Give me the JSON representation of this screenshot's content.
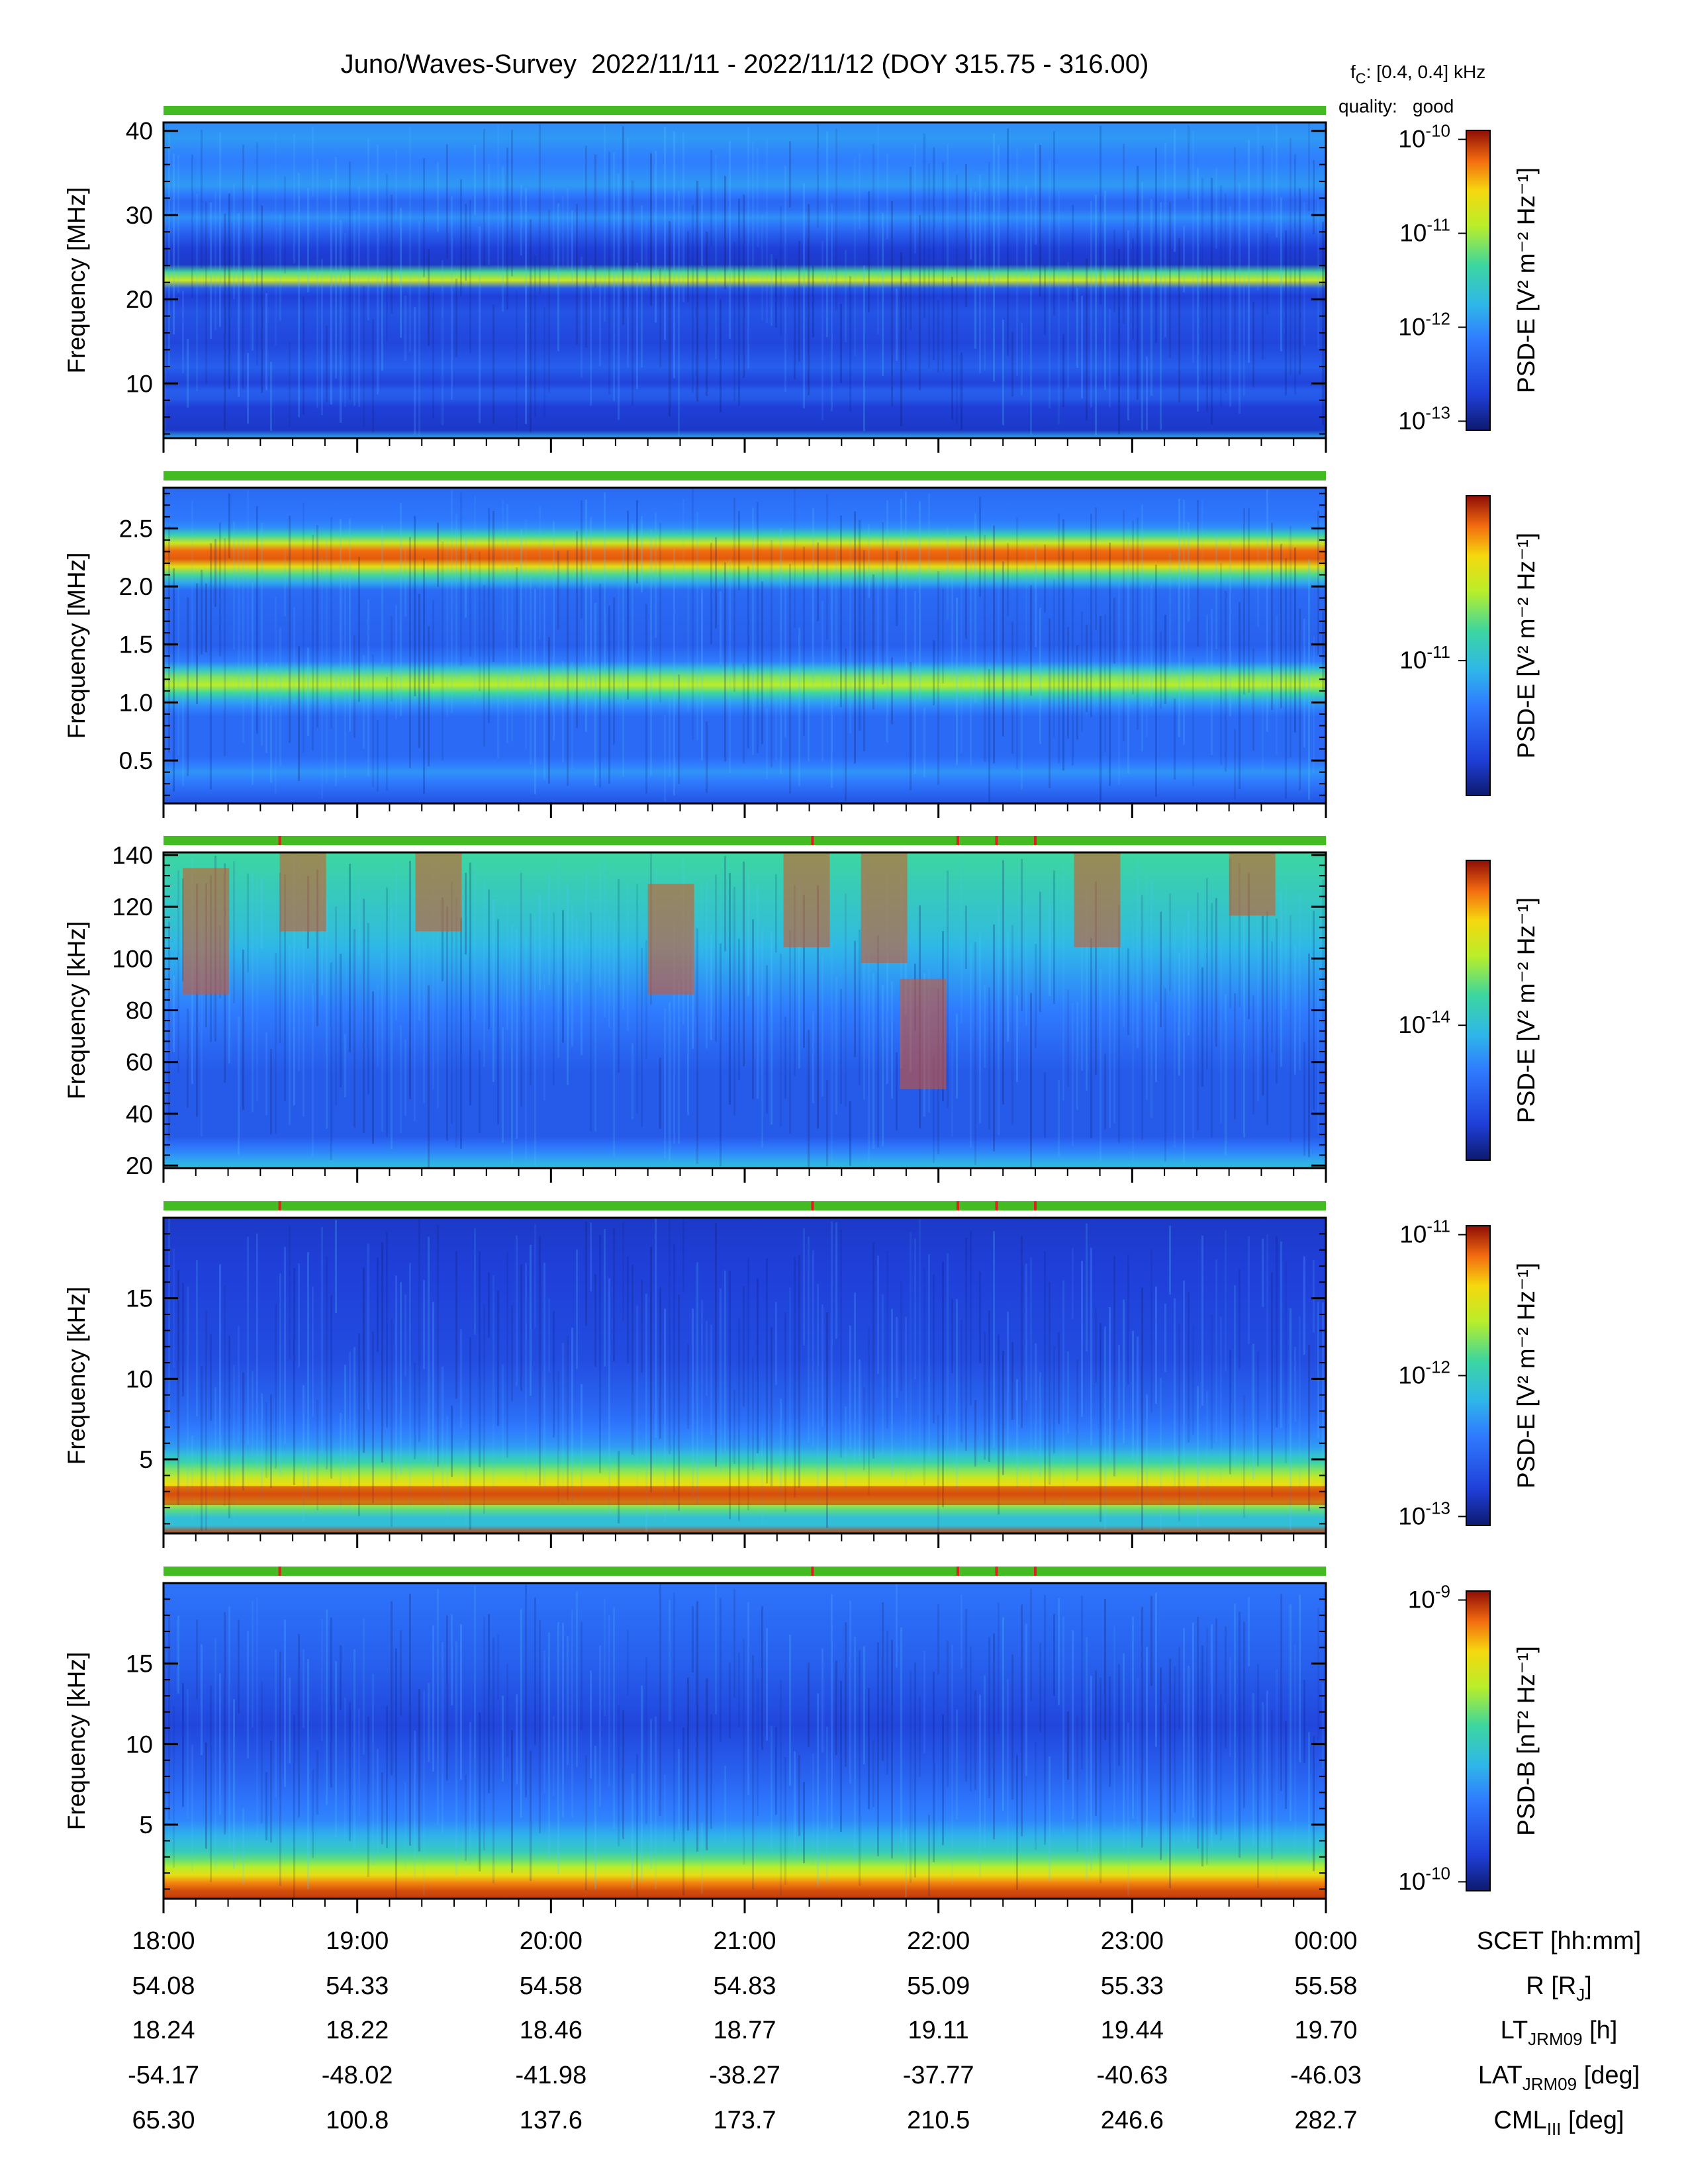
{
  "header": {
    "title": "Juno/Waves-Survey  2022/11/11 - 2022/11/12 (DOY 315.75 - 316.00)",
    "fc_prefix": "f",
    "fc_sub": "C",
    "fc_value": ": [0.4, 0.4] kHz",
    "quality_label": "quality:",
    "quality_value": "good",
    "quality_color": "#44bb22"
  },
  "chart_data": {
    "type": "heatmap",
    "x_axis": {
      "labels": [
        "18:00",
        "19:00",
        "20:00",
        "21:00",
        "22:00",
        "23:00",
        "00:00"
      ],
      "range_hours": [
        18,
        24
      ]
    },
    "ephemeris": [
      {
        "label": "SCET [hh:mm]",
        "values": [
          "18:00",
          "19:00",
          "20:00",
          "21:00",
          "22:00",
          "23:00",
          "00:00"
        ]
      },
      {
        "label": "R [R",
        "label_sub": "J",
        "label_tail": "]",
        "values": [
          "54.08",
          "54.33",
          "54.58",
          "54.83",
          "55.09",
          "55.33",
          "55.58"
        ]
      },
      {
        "label": "LT",
        "label_sub": "JRM09",
        "label_tail": " [h]",
        "values": [
          "18.24",
          "18.22",
          "18.46",
          "18.77",
          "19.11",
          "19.44",
          "19.70"
        ]
      },
      {
        "label": "LAT",
        "label_sub": "JRM09",
        "label_tail": " [deg]",
        "values": [
          "-54.17",
          "-48.02",
          "-41.98",
          "-38.27",
          "-37.77",
          "-40.63",
          "-46.03"
        ]
      },
      {
        "label": "CML",
        "label_sub": "III",
        "label_tail": " [deg]",
        "values": [
          "65.30",
          "100.8",
          "137.6",
          "173.7",
          "210.5",
          "246.6",
          "282.7"
        ]
      }
    ],
    "panels": [
      {
        "ylabel": "Frequency [MHz]",
        "yticks": [
          "10",
          "20",
          "30",
          "40"
        ],
        "ylim": [
          3.5,
          41
        ],
        "cbar_label": "PSD-E [V² m⁻² Hz⁻¹]",
        "cbar_ticks": [
          "10-10",
          "10-11",
          "10-12",
          "10-13"
        ],
        "quality_marks_hours": []
      },
      {
        "ylabel": "Frequency [MHz]",
        "yticks": [
          "0.5",
          "1.0",
          "1.5",
          "2.0",
          "2.5"
        ],
        "ylim": [
          0.13,
          2.85
        ],
        "cbar_label": "PSD-E [V² m⁻² Hz⁻¹]",
        "cbar_ticks": [
          "10-11"
        ],
        "quality_marks_hours": []
      },
      {
        "ylabel": "Frequency [kHz]",
        "yticks": [
          "20",
          "40",
          "60",
          "80",
          "100",
          "120",
          "140"
        ],
        "ylim": [
          19,
          141
        ],
        "cbar_label": "PSD-E [V² m⁻² Hz⁻¹]",
        "cbar_ticks": [
          "10-14"
        ],
        "quality_marks_hours": [
          18.6,
          21.35,
          22.1,
          22.3,
          22.5
        ]
      },
      {
        "ylabel": "Frequency [kHz]",
        "yticks": [
          "5",
          "10",
          "15"
        ],
        "ylim": [
          0.4,
          20
        ],
        "cbar_label": "PSD-E [V² m⁻² Hz⁻¹]",
        "cbar_ticks": [
          "10-11",
          "10-12",
          "10-13"
        ],
        "quality_marks_hours": [
          18.6,
          21.35,
          22.1,
          22.3,
          22.5
        ]
      },
      {
        "ylabel": "Frequency [kHz]",
        "yticks": [
          "5",
          "10",
          "15"
        ],
        "ylim": [
          0.4,
          20
        ],
        "cbar_label": "PSD-B [nT² Hz⁻¹]",
        "cbar_ticks": [
          "10-9",
          "10-10"
        ],
        "quality_marks_hours": [
          18.6,
          21.35,
          22.1,
          22.3,
          22.5
        ]
      }
    ]
  }
}
